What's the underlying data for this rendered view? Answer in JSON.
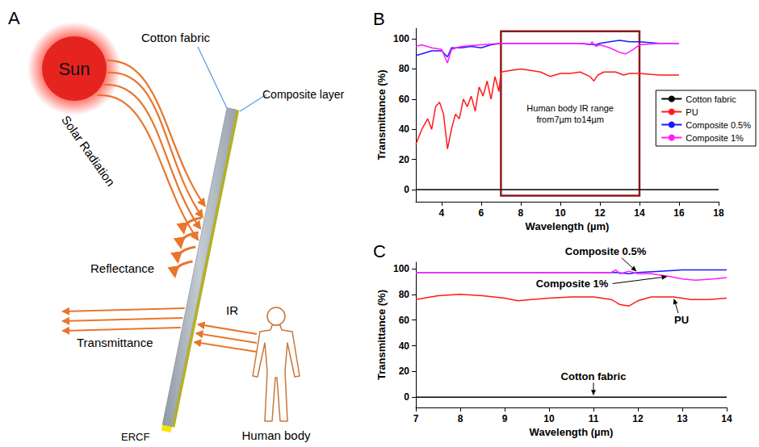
{
  "diagram": {
    "panel": "A",
    "labels": {
      "sun": "Sun",
      "cotton_fabric": "Cotton fabric",
      "composite_layer": "Composite layer",
      "solar_radiation": "Solar Radiation",
      "reflectance": "Reflectance",
      "transmittance": "Transmittance",
      "ir": "IR",
      "human_body": "Human body",
      "ercf": "ERCF"
    }
  },
  "chart_data": [
    {
      "panel": "B",
      "type": "line",
      "xlabel": "Wavelength (µm)",
      "ylabel": "Transmittance (%)",
      "xlim": [
        2.7,
        18
      ],
      "xticks": [
        4,
        6,
        8,
        10,
        12,
        14,
        16,
        18
      ],
      "ylim": [
        -8,
        107
      ],
      "yticks": [
        0,
        20,
        40,
        60,
        80,
        100
      ],
      "grid": false,
      "legend": "right",
      "highlight": {
        "x": [
          7,
          14
        ],
        "y": [
          -4,
          105
        ],
        "label": "Human body IR range from7µm to14µm",
        "color": "#8b1c1c"
      },
      "series": [
        {
          "name": "Cotton fabric",
          "color": "#000000",
          "x": [
            2.7,
            4,
            6,
            8,
            10,
            12,
            14,
            16,
            18
          ],
          "values": [
            0,
            0,
            0,
            0,
            0,
            0,
            0,
            0,
            0
          ]
        },
        {
          "name": "PU",
          "color": "#ff1a1a",
          "x": [
            2.7,
            3,
            3.3,
            3.5,
            3.7,
            3.9,
            4.1,
            4.3,
            4.5,
            4.7,
            4.9,
            5.1,
            5.3,
            5.5,
            5.7,
            5.9,
            6.1,
            6.3,
            6.5,
            6.7,
            6.9,
            7,
            7.5,
            8,
            8.5,
            9,
            9.5,
            10,
            10.5,
            11,
            11.5,
            11.7,
            11.9,
            12.2,
            12.8,
            13.2,
            13.5,
            14,
            15,
            16
          ],
          "values": [
            30,
            40,
            47,
            40,
            55,
            58,
            50,
            27,
            40,
            50,
            47,
            60,
            55,
            62,
            52,
            68,
            62,
            72,
            60,
            75,
            65,
            78,
            79,
            80,
            79,
            78,
            75,
            77,
            77,
            78,
            75,
            72,
            76,
            78,
            78,
            76,
            77,
            77,
            76,
            76
          ]
        },
        {
          "name": "Composite 0.5%",
          "color": "#1a1aff",
          "x": [
            2.7,
            3,
            3.5,
            4,
            4.3,
            4.5,
            5,
            5.5,
            6,
            6.5,
            7,
            8,
            9,
            10,
            11,
            11.8,
            12,
            12.5,
            13,
            13.5,
            14,
            15,
            16
          ],
          "values": [
            89,
            90,
            92,
            92,
            88,
            94,
            94,
            95,
            94,
            96,
            97,
            97,
            97,
            97,
            97,
            96,
            97,
            98,
            99,
            98,
            98,
            97,
            97
          ]
        },
        {
          "name": "Composite 1%",
          "color": "#ff1aff",
          "x": [
            2.7,
            3,
            3.5,
            4,
            4.3,
            4.5,
            5,
            6,
            7,
            8,
            9,
            10,
            11,
            11.5,
            11.6,
            11.8,
            12,
            12.5,
            13,
            13.3,
            13.7,
            14,
            15,
            16
          ],
          "values": [
            95,
            96,
            94,
            93,
            84,
            93,
            95,
            96,
            97,
            97,
            97,
            97,
            97,
            96,
            98,
            95,
            96,
            94,
            91,
            90,
            93,
            96,
            97,
            97
          ]
        }
      ]
    },
    {
      "panel": "C",
      "type": "line",
      "xlabel": "Wavelength (µm)",
      "ylabel": "Transmittance (%)",
      "xlim": [
        7,
        14
      ],
      "xticks": [
        7,
        8,
        9,
        10,
        11,
        12,
        13,
        14
      ],
      "ylim": [
        -8,
        105
      ],
      "yticks": [
        0,
        20,
        40,
        60,
        80,
        100
      ],
      "grid": false,
      "series": [
        {
          "name": "Cotton fabric",
          "color": "#000000",
          "x": [
            7,
            8,
            9,
            10,
            11,
            12,
            13,
            14
          ],
          "values": [
            0,
            0,
            0,
            0,
            0,
            0,
            0,
            0
          ]
        },
        {
          "name": "PU",
          "color": "#ff1a1a",
          "x": [
            7,
            7.5,
            8,
            8.5,
            9,
            9.3,
            9.6,
            10,
            10.5,
            11,
            11.4,
            11.6,
            11.8,
            12,
            12.3,
            12.8,
            13.2,
            13.6,
            14
          ],
          "values": [
            76,
            79,
            80,
            79,
            77,
            75,
            76,
            77,
            78,
            78,
            76,
            72,
            71,
            75,
            78,
            78,
            76,
            76,
            77
          ]
        },
        {
          "name": "Composite 0.5%",
          "color": "#1a1aff",
          "x": [
            7,
            8,
            9,
            10,
            11,
            11.5,
            11.8,
            12,
            12.5,
            13,
            13.5,
            14
          ],
          "values": [
            97,
            97,
            97,
            97,
            97,
            97,
            96,
            97,
            98,
            99,
            99,
            99
          ]
        },
        {
          "name": "Composite 1%",
          "color": "#ff1aff",
          "x": [
            7,
            8,
            9,
            10,
            11,
            11.4,
            11.5,
            11.6,
            11.8,
            12,
            12.3,
            12.7,
            13,
            13.3,
            13.7,
            14
          ],
          "values": [
            97,
            97,
            97,
            97,
            97,
            97,
            99,
            96,
            98,
            96,
            96,
            94,
            92,
            91,
            92,
            93
          ]
        }
      ],
      "annotations": [
        {
          "text": "Composite 0.5%",
          "series": "Composite 0.5%"
        },
        {
          "text": "Composite 1%",
          "series": "Composite 1%"
        },
        {
          "text": "PU",
          "series": "PU"
        },
        {
          "text": "Cotton fabric",
          "series": "Cotton fabric"
        }
      ]
    }
  ]
}
